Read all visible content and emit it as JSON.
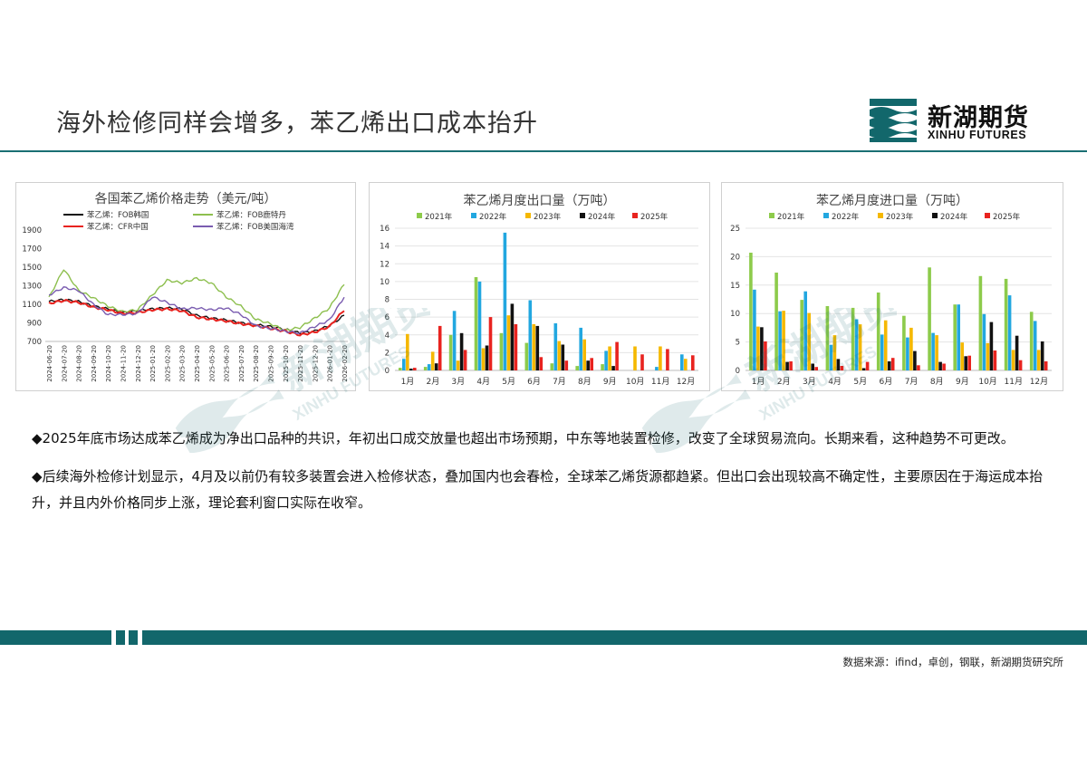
{
  "page": {
    "title": "海外检修同样会增多，苯乙烯出口成本抬升",
    "logo": {
      "cn": "新湖期货",
      "en": "XINHU FUTURES"
    },
    "watermark": {
      "cn": "新湖期货",
      "en": "XINHU FUTURES"
    },
    "bullets": [
      "◆2025年底市场达成苯乙烯成为净出口品种的共识，年初出口成交放量也超出市场预期，中东等地装置检修，改变了全球贸易流向。长期来看，这种趋势不可更改。",
      "◆后续海外检修计划显示，4月及以前仍有较多装置会进入检修状态，叠加国内也会春检，全球苯乙烯货源都趋紧。但出口会出现较高不确定性，主要原因在于海运成本抬升，并且内外价格同步上涨，理论套利窗口实际在收窄。"
    ],
    "source": "数据来源：ifind，卓创，钢联，新湖期货研究所"
  },
  "chart_data": [
    {
      "type": "line",
      "title": "各国苯乙烯价格走势（美元/吨）",
      "ylim": [
        700,
        1900
      ],
      "yticks": [
        "700",
        "900",
        "1100",
        "1300",
        "1500",
        "1700",
        "1900"
      ],
      "x_ticks": [
        "2024-06-20",
        "2024-07-20",
        "2024-08-20",
        "2024-09-20",
        "2024-10-20",
        "2024-11-20",
        "2024-12-20",
        "2025-01-20",
        "2025-02-20",
        "2025-03-20",
        "2025-04-20",
        "2025-05-20",
        "2025-06-20",
        "2025-07-20",
        "2025-08-20",
        "2025-09-20",
        "2025-10-20",
        "2025-11-20",
        "2025-12-20",
        "2026-01-20",
        "2026-02-20"
      ],
      "legend": [
        "苯乙烯：FOB韩国",
        "苯乙烯：FOB鹿特丹",
        "苯乙烯：CFR中国",
        "苯乙烯：FOB美国海湾"
      ],
      "colors": [
        "#111111",
        "#8dbf4e",
        "#e8231f",
        "#7a5cb0"
      ],
      "series": [
        {
          "name": "苯乙烯：FOB韩国",
          "values": [
            1130,
            1150,
            1130,
            1080,
            1050,
            1010,
            1030,
            1050,
            1060,
            1050,
            980,
            950,
            930,
            900,
            880,
            860,
            830,
            790,
            810,
            870,
            980
          ]
        },
        {
          "name": "苯乙烯：FOB鹿特丹",
          "values": [
            1170,
            1480,
            1250,
            1170,
            1080,
            1020,
            1040,
            1200,
            1360,
            1330,
            1380,
            1330,
            1180,
            1080,
            940,
            890,
            820,
            850,
            950,
            1060,
            1320
          ]
        },
        {
          "name": "苯乙烯：CFR中国",
          "values": [
            1110,
            1140,
            1120,
            1070,
            1040,
            1000,
            1010,
            1040,
            1050,
            1030,
            960,
            940,
            920,
            890,
            870,
            840,
            810,
            770,
            800,
            860,
            1040
          ]
        },
        {
          "name": "苯乙烯：FOB美国海湾",
          "values": [
            1200,
            1280,
            1250,
            1100,
            990,
            990,
            1000,
            1180,
            1120,
            1050,
            1060,
            1040,
            1060,
            990,
            870,
            840,
            810,
            790,
            860,
            930,
            1180
          ]
        }
      ]
    },
    {
      "type": "bar",
      "title": "苯乙烯月度出口量（万吨）",
      "ylim": [
        0,
        16
      ],
      "yticks": [
        "0",
        "2",
        "4",
        "6",
        "8",
        "10",
        "12",
        "14",
        "16"
      ],
      "categories": [
        "1月",
        "2月",
        "3月",
        "4月",
        "5月",
        "6月",
        "7月",
        "8月",
        "9月",
        "10月",
        "11月",
        "12月"
      ],
      "colors": [
        "#8dcb4b",
        "#22a7e0",
        "#f5b800",
        "#111111",
        "#e8231f"
      ],
      "series": [
        {
          "name": "2021年",
          "values": [
            0.3,
            0.4,
            4.0,
            10.5,
            4.2,
            3.1,
            0.8,
            0.5,
            0.7,
            0.0,
            0.0,
            0.0
          ]
        },
        {
          "name": "2022年",
          "values": [
            1.3,
            0.7,
            6.7,
            10.0,
            15.5,
            7.9,
            5.3,
            4.8,
            2.2,
            0.0,
            0.4,
            1.8
          ]
        },
        {
          "name": "2023年",
          "values": [
            4.1,
            2.1,
            1.1,
            2.5,
            6.2,
            5.2,
            3.3,
            3.5,
            2.7,
            2.7,
            2.7,
            1.3
          ]
        },
        {
          "name": "2024年",
          "values": [
            0.2,
            0.8,
            4.2,
            2.8,
            7.5,
            5.0,
            2.9,
            1.1,
            0.5,
            0.0,
            0.0,
            0.0
          ]
        },
        {
          "name": "2025年",
          "values": [
            0.3,
            5.0,
            2.3,
            6.0,
            5.2,
            1.5,
            1.1,
            1.4,
            3.2,
            1.8,
            2.4,
            1.7
          ]
        }
      ]
    },
    {
      "type": "bar",
      "title": "苯乙烯月度进口量（万吨）",
      "ylim": [
        0,
        25
      ],
      "yticks": [
        "0",
        "5",
        "10",
        "15",
        "20",
        "25"
      ],
      "categories": [
        "1月",
        "2月",
        "3月",
        "4月",
        "5月",
        "6月",
        "7月",
        "8月",
        "9月",
        "10月",
        "11月",
        "12月"
      ],
      "colors": [
        "#8dcb4b",
        "#22a7e0",
        "#f5b800",
        "#111111",
        "#e8231f"
      ],
      "series": [
        {
          "name": "2021年",
          "values": [
            20.7,
            17.2,
            12.4,
            11.3,
            11.0,
            13.7,
            9.6,
            18.1,
            11.6,
            16.6,
            16.1,
            10.3
          ]
        },
        {
          "name": "2022年",
          "values": [
            14.2,
            10.4,
            13.9,
            4.5,
            9.0,
            6.3,
            5.8,
            6.6,
            11.6,
            9.9,
            13.2,
            8.7
          ]
        },
        {
          "name": "2023年",
          "values": [
            7.7,
            10.5,
            10.1,
            6.2,
            8.1,
            8.8,
            7.5,
            6.2,
            4.9,
            4.8,
            3.6,
            3.6
          ]
        },
        {
          "name": "2024年",
          "values": [
            7.6,
            1.5,
            1.2,
            2.0,
            0.4,
            1.6,
            3.4,
            1.5,
            2.5,
            8.5,
            6.1,
            5.1
          ]
        },
        {
          "name": "2025年",
          "values": [
            5.1,
            1.6,
            0.6,
            0.8,
            1.5,
            2.2,
            0.9,
            1.2,
            2.6,
            3.5,
            1.8,
            1.6
          ]
        }
      ]
    }
  ]
}
